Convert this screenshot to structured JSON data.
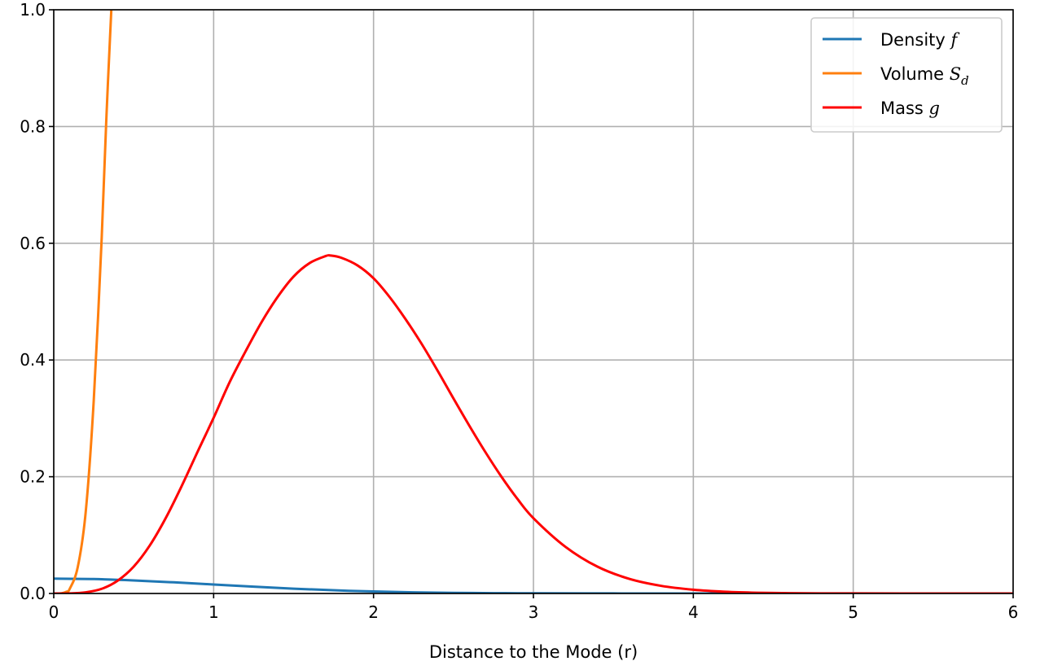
{
  "chart_data": {
    "type": "line",
    "title": "",
    "xlabel": "Distance to the Mode (r)",
    "ylabel": "",
    "xlim": [
      0,
      6
    ],
    "ylim": [
      0,
      1.0
    ],
    "grid": true,
    "legend_position": "top-right",
    "xticks": [
      0,
      1,
      2,
      3,
      4,
      5,
      6
    ],
    "xtick_labels": [
      "0",
      "1",
      "2",
      "3",
      "4",
      "5",
      "6"
    ],
    "yticks": [
      0.0,
      0.2,
      0.4,
      0.6,
      0.8,
      1.0
    ],
    "ytick_labels": [
      "0.0",
      "0.2",
      "0.4",
      "0.6",
      "0.8",
      "1.0"
    ],
    "series": [
      {
        "name": "Density f",
        "name_text": "Density ",
        "name_math": "f",
        "name_sub": "",
        "color": "#1f77b4",
        "x": [
          0,
          0.25,
          0.5,
          0.75,
          1.0,
          1.25,
          1.5,
          1.75,
          2.0,
          2.25,
          2.5,
          2.75,
          3.0,
          3.5,
          4.0,
          5.0,
          6.0
        ],
        "y": [
          0.0254,
          0.0247,
          0.0224,
          0.0191,
          0.0154,
          0.0116,
          0.0082,
          0.0055,
          0.0034,
          0.002,
          0.0011,
          0.0006,
          0.0003,
          0.0001,
          0.0,
          0.0,
          0.0
        ]
      },
      {
        "name": "Volume S_d",
        "name_text": "Volume ",
        "name_math": "S",
        "name_sub": "d",
        "color": "#ff7f0e",
        "x": [
          0,
          0.05,
          0.08,
          0.1,
          0.15,
          0.2,
          0.25,
          0.3,
          0.33,
          0.36
        ],
        "y": [
          0.0,
          0.0004,
          0.003,
          0.008,
          0.045,
          0.14,
          0.33,
          0.61,
          0.82,
          1.0
        ]
      },
      {
        "name": "Mass g",
        "name_text": "Mass ",
        "name_math": "g",
        "name_sub": "",
        "color": "#ff0000",
        "x": [
          0,
          0.1,
          0.2,
          0.3,
          0.4,
          0.5,
          0.6,
          0.7,
          0.8,
          0.9,
          1.0,
          1.1,
          1.2,
          1.3,
          1.4,
          1.5,
          1.6,
          1.7,
          1.73,
          1.8,
          1.9,
          2.0,
          2.1,
          2.2,
          2.3,
          2.4,
          2.5,
          2.6,
          2.7,
          2.8,
          2.9,
          3.0,
          3.2,
          3.4,
          3.6,
          3.8,
          4.0,
          4.2,
          4.4,
          4.6,
          4.8,
          5.0,
          5.5,
          6.0
        ],
        "y": [
          0.0,
          0.0001,
          0.002,
          0.008,
          0.022,
          0.046,
          0.082,
          0.129,
          0.184,
          0.243,
          0.301,
          0.362,
          0.415,
          0.465,
          0.508,
          0.543,
          0.566,
          0.578,
          0.579,
          0.575,
          0.562,
          0.54,
          0.508,
          0.47,
          0.428,
          0.382,
          0.334,
          0.287,
          0.242,
          0.2,
          0.162,
          0.129,
          0.08,
          0.046,
          0.025,
          0.013,
          0.0065,
          0.003,
          0.0013,
          0.0006,
          0.0002,
          0.0001,
          0.0,
          0.0
        ]
      }
    ]
  }
}
